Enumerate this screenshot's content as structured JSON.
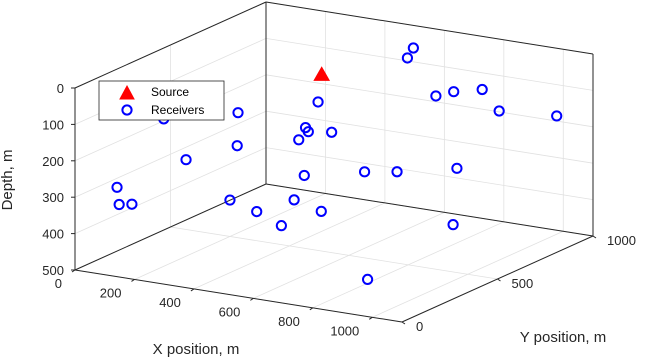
{
  "chart_data": {
    "type": "scatter3d",
    "xlabel": "X position, m",
    "ylabel": "Y position, m",
    "zlabel": "Depth, m",
    "xlim": [
      0,
      1100
    ],
    "ylim": [
      0,
      1000
    ],
    "zlim": [
      0,
      500
    ],
    "z_reversed": true,
    "xticks": [
      0,
      200,
      400,
      600,
      800,
      1000
    ],
    "yticks": [
      0,
      500,
      1000
    ],
    "zticks": [
      0,
      100,
      200,
      300,
      400,
      500
    ],
    "grid": true,
    "legend_position": "top-left",
    "series": [
      {
        "name": "Source",
        "marker": "filled-triangle",
        "color": "#ff0000",
        "points": [
          [
            470,
            560,
            35
          ]
        ]
      },
      {
        "name": "Receivers",
        "marker": "open-circle",
        "color": "#0000ff",
        "points": [
          [
            170,
            200,
            110
          ],
          [
            90,
            80,
            280
          ],
          [
            110,
            60,
            320
          ],
          [
            140,
            80,
            320
          ],
          [
            200,
            500,
            400
          ],
          [
            290,
            500,
            420
          ],
          [
            450,
            500,
            300
          ],
          [
            640,
            690,
            310
          ],
          [
            420,
            690,
            230
          ],
          [
            540,
            900,
            60
          ],
          [
            400,
            650,
            140
          ],
          [
            390,
            600,
            200
          ],
          [
            560,
            350,
            130
          ],
          [
            640,
            520,
            270
          ],
          [
            700,
            800,
            120
          ],
          [
            790,
            750,
            450
          ],
          [
            340,
            320,
            190
          ],
          [
            610,
            340,
            340
          ],
          [
            790,
            770,
            300
          ],
          [
            560,
            900,
            30
          ],
          [
            580,
            1080,
            190
          ],
          [
            240,
            480,
            150
          ],
          [
            920,
            100,
            430
          ],
          [
            920,
            700,
            50
          ],
          [
            630,
            100,
            320
          ],
          [
            660,
            120,
            250
          ],
          [
            290,
            130,
            190
          ],
          [
            900,
            820,
            140
          ],
          [
            1010,
            950,
            170
          ],
          [
            380,
            580,
            230
          ]
        ]
      }
    ]
  }
}
